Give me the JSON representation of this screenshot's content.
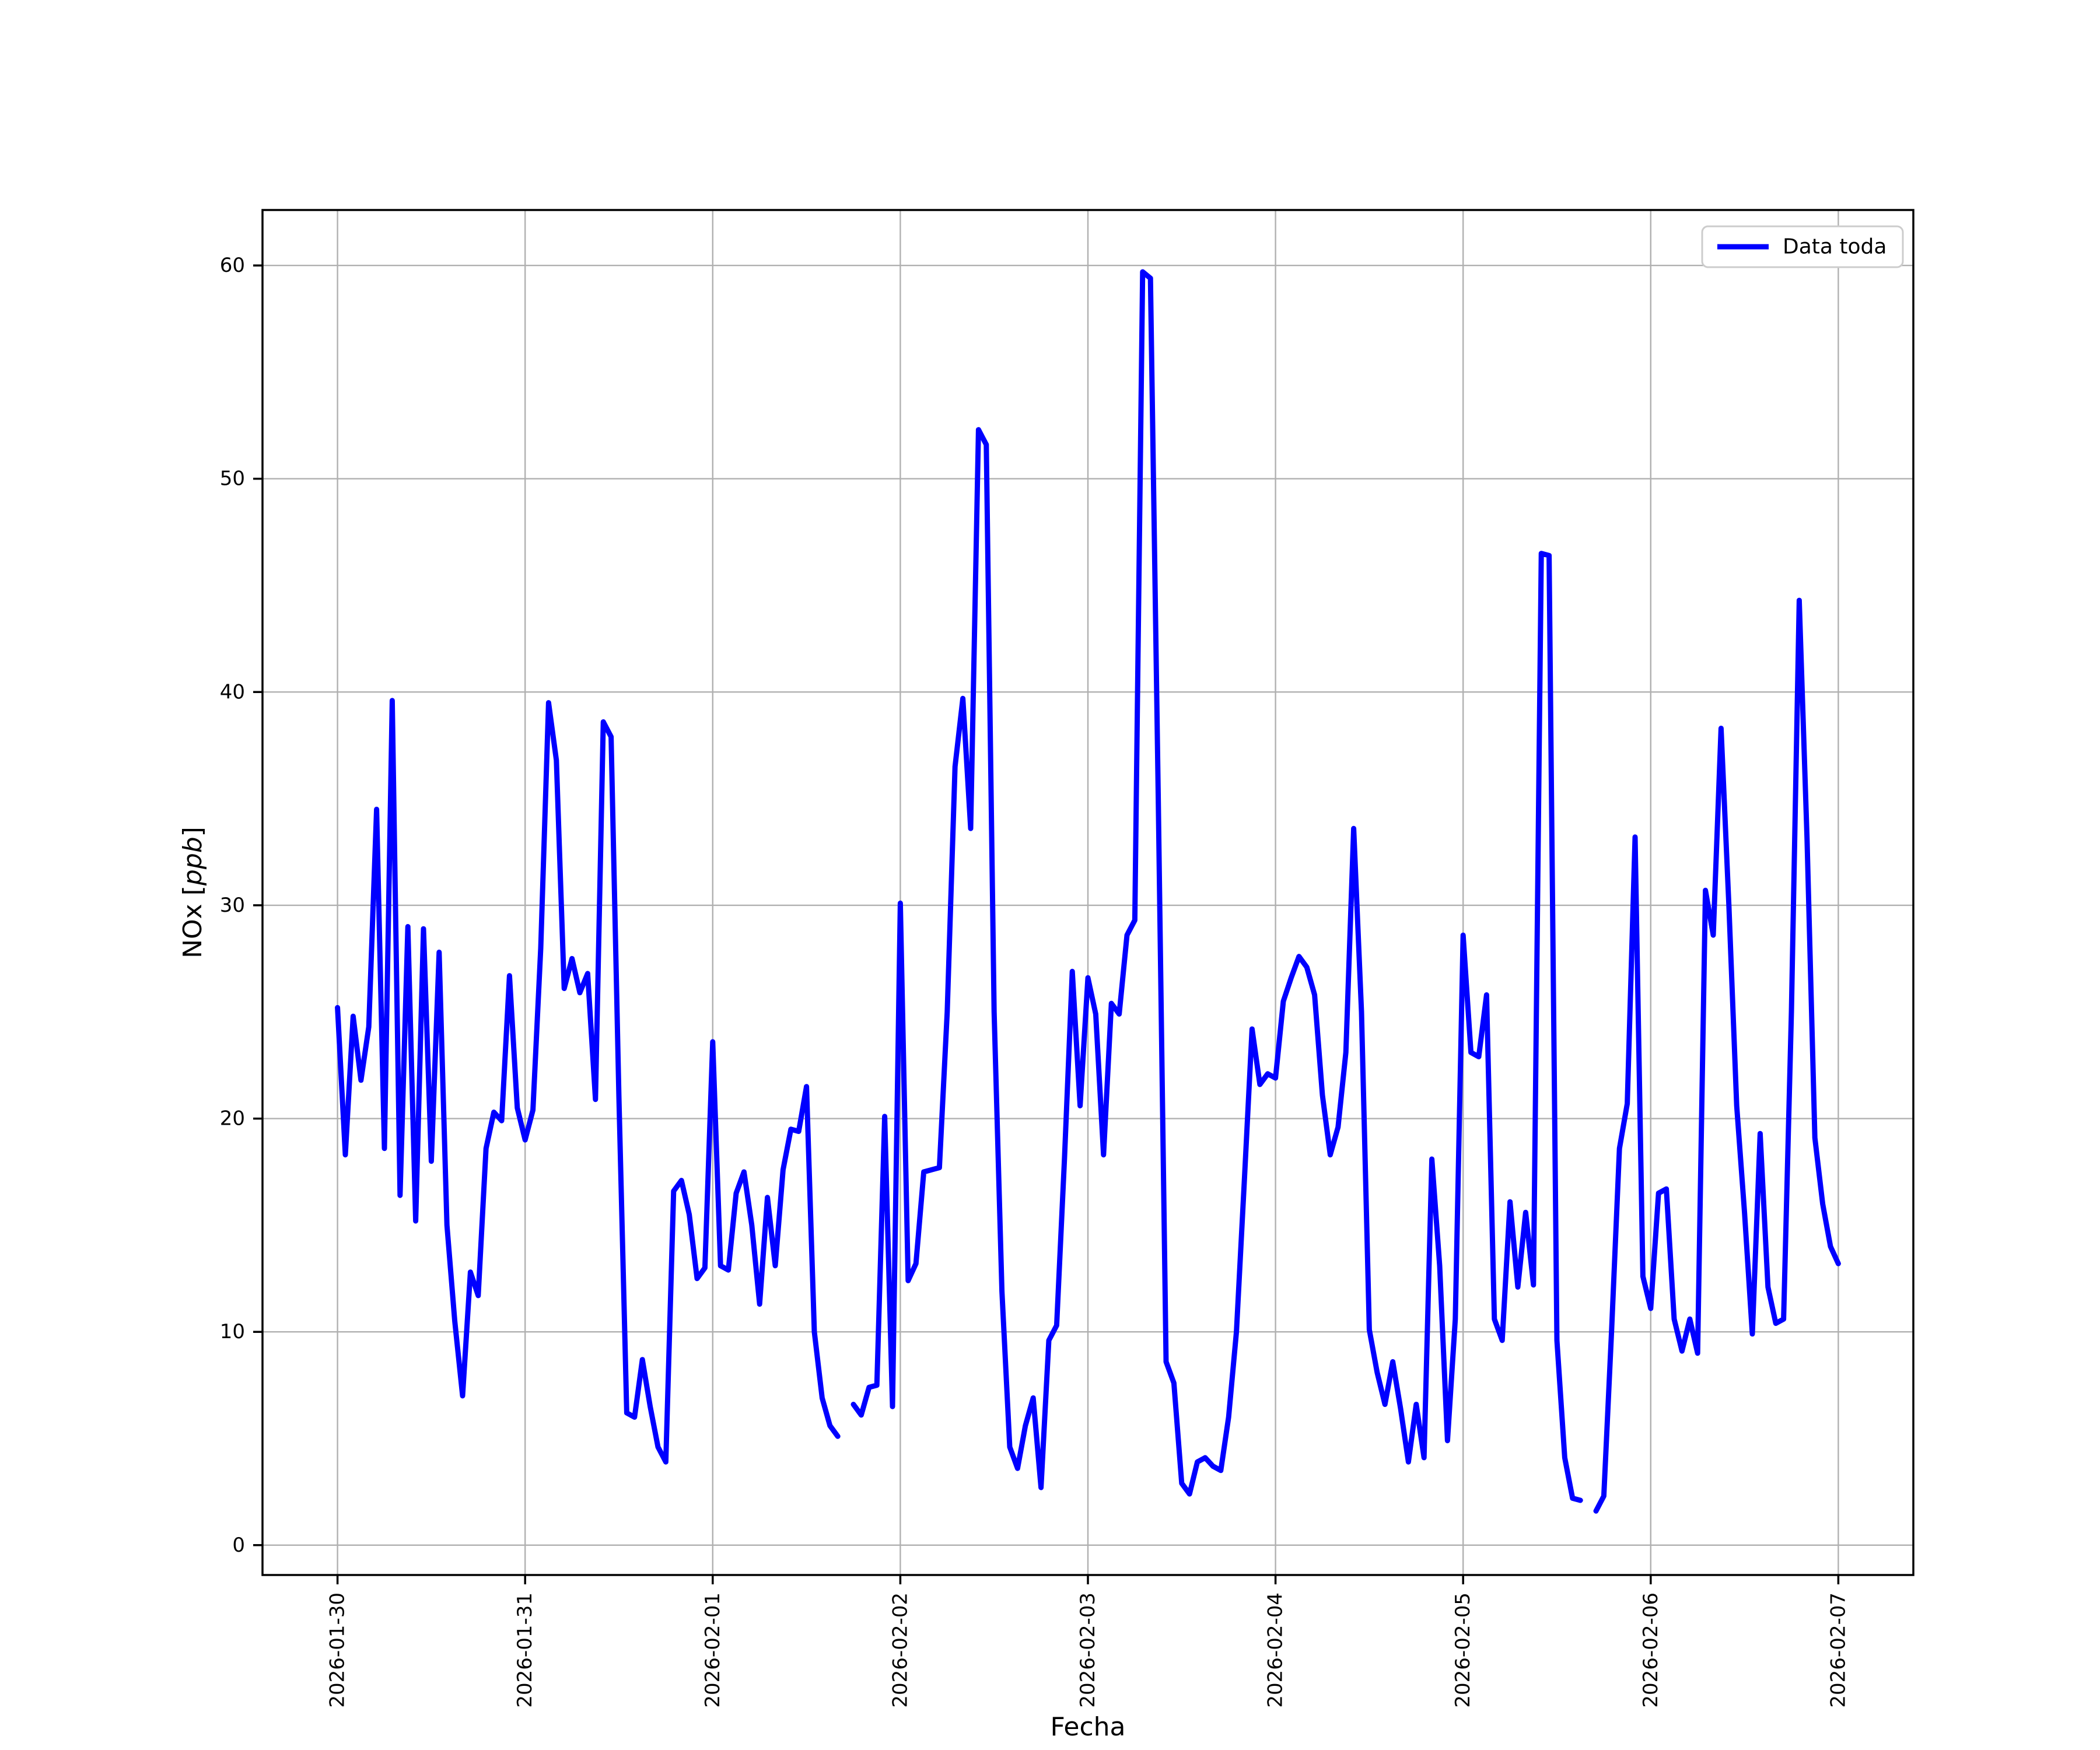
{
  "chart_data": {
    "type": "line",
    "title": "",
    "xlabel": "Fecha",
    "ylabel": "NOx [ppb]",
    "ylabel_parts": {
      "prefix": "NOx [",
      "italic": "ppb",
      "suffix": "]"
    },
    "legend": [
      "Data toda"
    ],
    "legend_position": "upper right",
    "grid": true,
    "line_color": "#0000ff",
    "grid_color": "#b0b0b0",
    "axis_color": "#000000",
    "legend_edge_color": "#cccccc",
    "start": "2026-01-30 00:00",
    "interval_hours": 1,
    "x_tick_hours": [
      0,
      24,
      48,
      72,
      96,
      120,
      144,
      168,
      192
    ],
    "x_tick_labels": [
      "2026-01-30",
      "2026-01-31",
      "2026-02-01",
      "2026-02-02",
      "2026-02-03",
      "2026-02-04",
      "2026-02-05",
      "2026-02-06",
      "2026-02-07"
    ],
    "y_ticks": [
      0,
      10,
      20,
      30,
      40,
      50,
      60
    ],
    "xlim_hours": [
      -9.6,
      201.6
    ],
    "ylim": [
      -1.4,
      62.6
    ],
    "values": [
      25.2,
      18.3,
      24.8,
      21.8,
      24.3,
      34.5,
      18.6,
      39.6,
      16.4,
      29.0,
      15.2,
      28.9,
      18.0,
      27.8,
      15.0,
      10.5,
      7.0,
      12.8,
      11.7,
      18.6,
      20.3,
      19.9,
      26.7,
      20.5,
      19.0,
      20.4,
      28.0,
      39.5,
      36.8,
      26.1,
      27.5,
      25.9,
      26.8,
      20.9,
      38.6,
      37.9,
      21.0,
      6.2,
      6.0,
      8.7,
      6.5,
      4.6,
      3.9,
      16.6,
      17.1,
      15.5,
      12.5,
      13.0,
      23.6,
      13.1,
      12.9,
      16.5,
      17.5,
      15.0,
      11.3,
      16.3,
      13.1,
      17.6,
      19.5,
      19.4,
      21.5,
      10.0,
      6.9,
      5.6,
      5.1,
      null,
      6.6,
      6.1,
      7.4,
      7.5,
      20.1,
      6.5,
      30.1,
      12.4,
      13.2,
      17.5,
      17.6,
      17.7,
      25.0,
      36.5,
      39.7,
      33.6,
      52.3,
      51.6,
      25.0,
      11.9,
      4.6,
      3.6,
      5.6,
      6.9,
      2.7,
      9.6,
      10.3,
      18.1,
      26.9,
      20.6,
      26.6,
      24.9,
      18.3,
      25.4,
      24.9,
      28.6,
      29.3,
      59.7,
      59.4,
      35.0,
      8.6,
      7.6,
      2.9,
      2.4,
      3.9,
      4.1,
      3.7,
      3.5,
      6.0,
      10.0,
      17.0,
      24.2,
      21.6,
      22.1,
      21.9,
      25.5,
      26.6,
      27.6,
      27.1,
      25.8,
      21.1,
      18.3,
      19.6,
      23.1,
      33.6,
      25.0,
      10.1,
      8.1,
      6.6,
      8.6,
      6.4,
      3.9,
      6.6,
      4.1,
      18.1,
      13.1,
      4.9,
      10.6,
      28.6,
      23.1,
      22.9,
      25.8,
      10.6,
      9.6,
      16.1,
      12.1,
      15.6,
      12.2,
      46.5,
      46.4,
      9.6,
      4.1,
      2.2,
      2.1,
      null,
      1.6,
      2.3,
      10.1,
      18.6,
      20.7,
      33.2,
      12.6,
      11.1,
      16.5,
      16.7,
      10.6,
      9.1,
      10.6,
      9.0,
      30.7,
      28.6,
      38.3,
      30.0,
      20.6,
      15.6,
      9.9,
      19.3,
      12.1,
      10.4,
      10.6,
      25.0,
      44.3,
      33.1,
      19.1,
      16.0,
      14.0,
      13.2
    ]
  }
}
